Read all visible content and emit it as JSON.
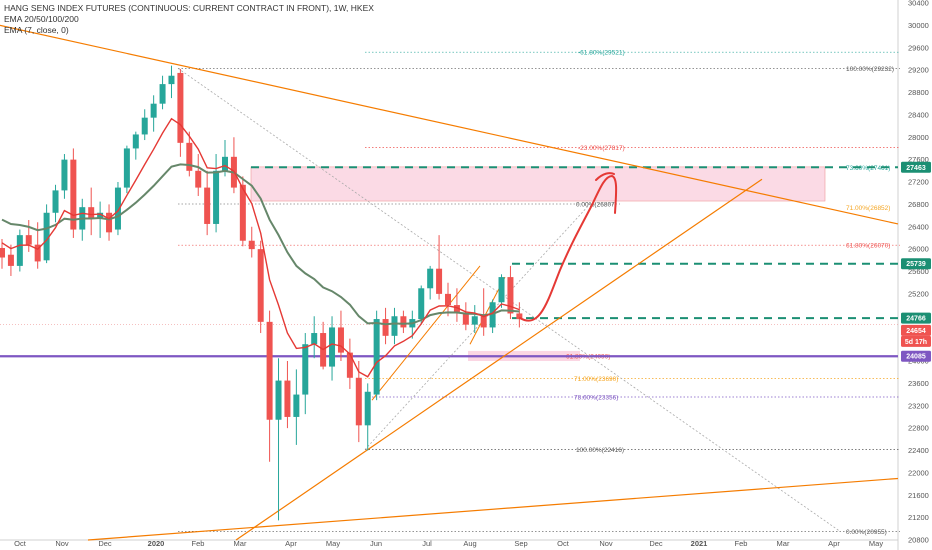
{
  "chart_data": {
    "type": "candlestick",
    "title": "HANG SENG INDEX FUTURES (CONTINUOUS: CURRENT CONTRACT IN FRONT), 1W, HKEX",
    "indicators": [
      "EMA 20/50/100/200",
      "EMA (7, close, 0)"
    ],
    "ylim": [
      20800,
      30400
    ],
    "y_ticks": [
      "30400",
      "30000",
      "29600",
      "29200",
      "28800",
      "28400",
      "28000",
      "27600",
      "27200",
      "26800",
      "26400",
      "26000",
      "25600",
      "25200",
      "24800",
      "24400",
      "24000",
      "23600",
      "23200",
      "22800",
      "22400",
      "22000",
      "21600",
      "21200",
      "20800"
    ],
    "x_ticks": [
      "Oct",
      "Nov",
      "Dec",
      "2020",
      "Feb",
      "Mar",
      "Apr",
      "May",
      "Jun",
      "Jul",
      "Aug",
      "Sep",
      "Oct",
      "Nov",
      "Dec",
      "2021",
      "Feb",
      "Mar",
      "Apr",
      "May"
    ],
    "candles": [
      {
        "o": 26020,
        "h": 26180,
        "l": 25650,
        "c": 25850
      },
      {
        "o": 25900,
        "h": 26080,
        "l": 25520,
        "c": 25700
      },
      {
        "o": 25700,
        "h": 26350,
        "l": 25600,
        "c": 26250
      },
      {
        "o": 26250,
        "h": 26520,
        "l": 25950,
        "c": 26080
      },
      {
        "o": 26080,
        "h": 26480,
        "l": 25650,
        "c": 25780
      },
      {
        "o": 25800,
        "h": 26800,
        "l": 25750,
        "c": 26650
      },
      {
        "o": 26650,
        "h": 27150,
        "l": 26480,
        "c": 27050
      },
      {
        "o": 27050,
        "h": 27700,
        "l": 26900,
        "c": 27600
      },
      {
        "o": 27600,
        "h": 27800,
        "l": 26200,
        "c": 26350
      },
      {
        "o": 26350,
        "h": 26900,
        "l": 26150,
        "c": 26750
      },
      {
        "o": 26750,
        "h": 27100,
        "l": 26250,
        "c": 26550
      },
      {
        "o": 26550,
        "h": 26850,
        "l": 26200,
        "c": 26650
      },
      {
        "o": 26650,
        "h": 26800,
        "l": 26150,
        "c": 26300
      },
      {
        "o": 26350,
        "h": 27200,
        "l": 26250,
        "c": 27100
      },
      {
        "o": 27100,
        "h": 27850,
        "l": 27000,
        "c": 27800
      },
      {
        "o": 27800,
        "h": 28100,
        "l": 27600,
        "c": 28050
      },
      {
        "o": 28050,
        "h": 28500,
        "l": 27950,
        "c": 28350
      },
      {
        "o": 28350,
        "h": 28750,
        "l": 28100,
        "c": 28600
      },
      {
        "o": 28600,
        "h": 29100,
        "l": 28500,
        "c": 28950
      },
      {
        "o": 28950,
        "h": 29280,
        "l": 28700,
        "c": 29100
      },
      {
        "o": 29150,
        "h": 29220,
        "l": 27650,
        "c": 27900
      },
      {
        "o": 27900,
        "h": 28100,
        "l": 27300,
        "c": 27400
      },
      {
        "o": 27400,
        "h": 27700,
        "l": 26950,
        "c": 27100
      },
      {
        "o": 27100,
        "h": 27400,
        "l": 26250,
        "c": 26450
      },
      {
        "o": 26450,
        "h": 27700,
        "l": 26300,
        "c": 27400
      },
      {
        "o": 27400,
        "h": 27950,
        "l": 27300,
        "c": 27650
      },
      {
        "o": 27650,
        "h": 28000,
        "l": 27000,
        "c": 27100
      },
      {
        "o": 27150,
        "h": 27300,
        "l": 26050,
        "c": 26150
      },
      {
        "o": 26150,
        "h": 26400,
        "l": 25850,
        "c": 26000
      },
      {
        "o": 26000,
        "h": 26150,
        "l": 24500,
        "c": 24700
      },
      {
        "o": 24700,
        "h": 24900,
        "l": 22200,
        "c": 22950
      },
      {
        "o": 22950,
        "h": 24050,
        "l": 21150,
        "c": 23650
      },
      {
        "o": 23650,
        "h": 24000,
        "l": 22800,
        "c": 23000
      },
      {
        "o": 23000,
        "h": 23850,
        "l": 22500,
        "c": 23400
      },
      {
        "o": 23400,
        "h": 24500,
        "l": 23050,
        "c": 24300
      },
      {
        "o": 24300,
        "h": 24800,
        "l": 24050,
        "c": 24500
      },
      {
        "o": 24500,
        "h": 24700,
        "l": 23850,
        "c": 23900
      },
      {
        "o": 23900,
        "h": 24800,
        "l": 23650,
        "c": 24600
      },
      {
        "o": 24600,
        "h": 24900,
        "l": 24000,
        "c": 24150
      },
      {
        "o": 24150,
        "h": 24400,
        "l": 23500,
        "c": 23700
      },
      {
        "o": 23700,
        "h": 24000,
        "l": 22550,
        "c": 22850
      },
      {
        "o": 22850,
        "h": 23600,
        "l": 22400,
        "c": 23450
      },
      {
        "o": 23400,
        "h": 24900,
        "l": 23300,
        "c": 24750
      },
      {
        "o": 24750,
        "h": 24950,
        "l": 24300,
        "c": 24450
      },
      {
        "o": 24450,
        "h": 24950,
        "l": 24300,
        "c": 24800
      },
      {
        "o": 24800,
        "h": 24900,
        "l": 24500,
        "c": 24600
      },
      {
        "o": 24600,
        "h": 24900,
        "l": 24400,
        "c": 24750
      },
      {
        "o": 24750,
        "h": 25350,
        "l": 24650,
        "c": 25300
      },
      {
        "o": 25300,
        "h": 25700,
        "l": 25100,
        "c": 25650
      },
      {
        "o": 25650,
        "h": 26250,
        "l": 25100,
        "c": 25200
      },
      {
        "o": 25200,
        "h": 25400,
        "l": 24800,
        "c": 25000
      },
      {
        "o": 25000,
        "h": 25300,
        "l": 24700,
        "c": 24850
      },
      {
        "o": 24850,
        "h": 25050,
        "l": 24550,
        "c": 24650
      },
      {
        "o": 24650,
        "h": 25000,
        "l": 24500,
        "c": 24800
      },
      {
        "o": 24800,
        "h": 25300,
        "l": 24450,
        "c": 24600
      },
      {
        "o": 24600,
        "h": 25100,
        "l": 24500,
        "c": 25050
      },
      {
        "o": 25050,
        "h": 25550,
        "l": 24950,
        "c": 25500
      },
      {
        "o": 25500,
        "h": 25700,
        "l": 24750,
        "c": 24850
      },
      {
        "o": 24850,
        "h": 25050,
        "l": 24600,
        "c": 24750
      }
    ],
    "fib_levels": [
      {
        "label": "-61.80%(29521)",
        "price": 29521,
        "color": "#26a69a"
      },
      {
        "label": "100.00%(29232)",
        "price": 29232,
        "color": "#555555"
      },
      {
        "label": "-23.00%(27817)",
        "price": 27817,
        "color": "#ef5350"
      },
      {
        "label": "73.60%(27461)",
        "price": 27461,
        "color": "#26a69a"
      },
      {
        "label": "0.00%(26807)",
        "price": 26807,
        "color": "#555555"
      },
      {
        "label": "71.00%(26852)",
        "price": 26852,
        "color": "#f5a623"
      },
      {
        "label": "61.80%(26070)",
        "price": 26070,
        "color": "#ef5350"
      },
      {
        "label": "61.80%(24090)",
        "price": 24090,
        "color": "#ef5350"
      },
      {
        "label": "71.00%(23690)",
        "price": 23690,
        "color": "#f5a623"
      },
      {
        "label": "78.60%(23356)",
        "price": 23356,
        "color": "#7e57c2"
      },
      {
        "label": "100.00%(22416)",
        "price": 22416,
        "color": "#555555"
      },
      {
        "label": "0.00%(20955)",
        "price": 20955,
        "color": "#555555"
      }
    ],
    "price_tags": [
      {
        "label": "27463",
        "price": 27463,
        "color": "#1b8f73"
      },
      {
        "label": "25739",
        "price": 25739,
        "color": "#1b8f73"
      },
      {
        "label": "24766",
        "price": 24766,
        "color": "#1b8f73"
      },
      {
        "label": "24654",
        "price": 24654,
        "color": "#ef5350"
      },
      {
        "label": "5d 17h",
        "price": 24500,
        "color": "#ef5350"
      },
      {
        "label": "24085",
        "price": 24085,
        "color": "#7e57c2"
      }
    ],
    "colors": {
      "up": "#26a69a",
      "down": "#ef5350",
      "ema_slow": "#66876a",
      "ema_fast": "#e53935",
      "trend": "#f57c00",
      "zone": "#f8bbd0",
      "purple": "#7e57c2",
      "dash_green": "#1b8f73"
    }
  }
}
